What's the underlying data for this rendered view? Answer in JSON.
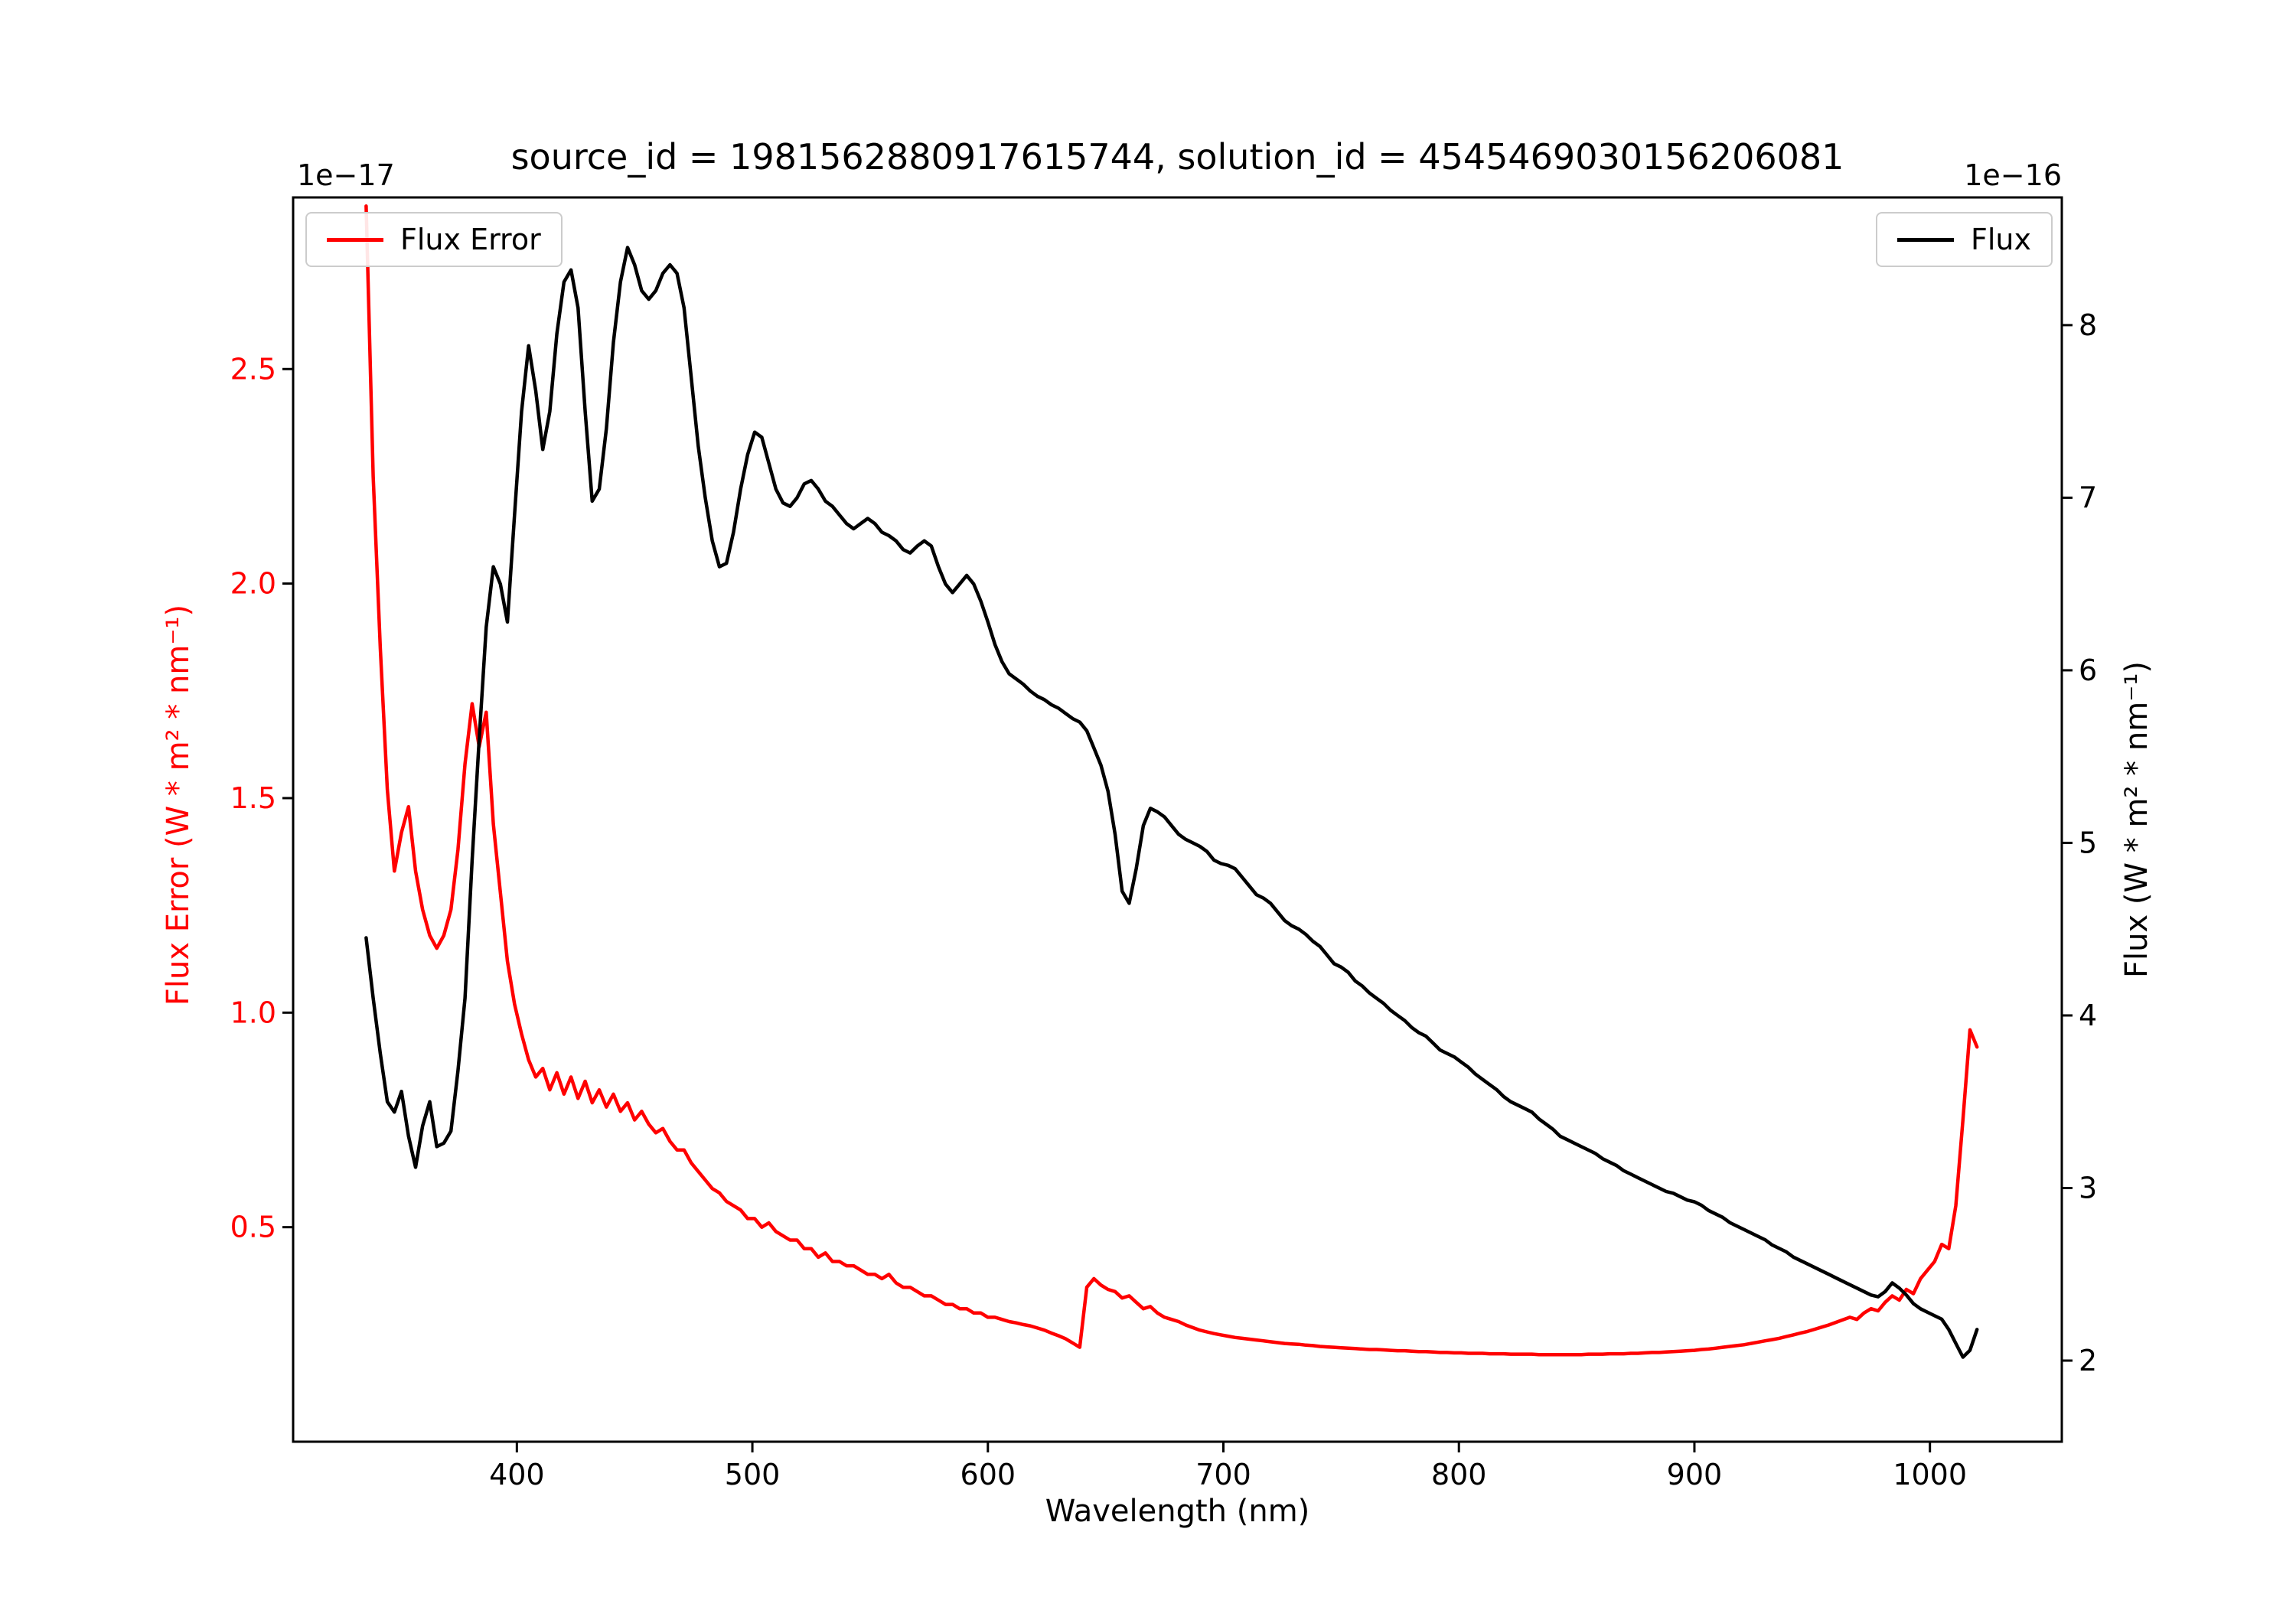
{
  "title": "source_id = 1981562880917615744, solution_id = 4545469030156206081",
  "chart_data": {
    "type": "line",
    "title": "source_id = 1981562880917615744, solution_id = 4545469030156206081",
    "xlabel": "Wavelength (nm)",
    "xlim": [
      305,
      1056
    ],
    "grid": false,
    "x_ticks": {
      "values": [
        400,
        500,
        600,
        700,
        800,
        900,
        1000
      ],
      "labels": [
        "400",
        "500",
        "600",
        "700",
        "800",
        "900",
        "1000"
      ]
    },
    "left_axis": {
      "label": "Flux Error (W * m² * nm⁻¹)",
      "offset_text": "1e−17",
      "color": "#ff0000",
      "ylim": [
        0.0,
        2.9
      ],
      "tick_values": [
        0.5,
        1.0,
        1.5,
        2.0,
        2.5
      ],
      "tick_labels": [
        "0.5",
        "1.0",
        "1.5",
        "2.0",
        "2.5"
      ]
    },
    "right_axis": {
      "label": "Flux (W * m² * nm⁻¹)",
      "offset_text": "1e−16",
      "color": "#000000",
      "ylim": [
        1.53,
        8.74
      ],
      "tick_values": [
        2,
        3,
        4,
        5,
        6,
        7,
        8
      ],
      "tick_labels": [
        "2",
        "3",
        "4",
        "5",
        "6",
        "7",
        "8"
      ]
    },
    "x_start": 336,
    "x_step": 3,
    "x_count": 229,
    "series": [
      {
        "name": "Flux Error",
        "color": "#ff0000",
        "axis": "left",
        "legend_position": "upper left",
        "values": [
          2.88,
          2.25,
          1.85,
          1.52,
          1.33,
          1.42,
          1.48,
          1.33,
          1.24,
          1.18,
          1.15,
          1.18,
          1.24,
          1.38,
          1.58,
          1.72,
          1.62,
          1.7,
          1.44,
          1.28,
          1.12,
          1.02,
          0.95,
          0.89,
          0.85,
          0.87,
          0.82,
          0.86,
          0.81,
          0.85,
          0.8,
          0.84,
          0.79,
          0.82,
          0.78,
          0.81,
          0.77,
          0.79,
          0.75,
          0.77,
          0.74,
          0.72,
          0.73,
          0.7,
          0.68,
          0.68,
          0.65,
          0.63,
          0.61,
          0.59,
          0.58,
          0.56,
          0.55,
          0.54,
          0.52,
          0.52,
          0.5,
          0.51,
          0.49,
          0.48,
          0.47,
          0.47,
          0.45,
          0.45,
          0.43,
          0.44,
          0.42,
          0.42,
          0.41,
          0.41,
          0.4,
          0.39,
          0.39,
          0.38,
          0.39,
          0.37,
          0.36,
          0.36,
          0.35,
          0.34,
          0.34,
          0.33,
          0.32,
          0.32,
          0.31,
          0.31,
          0.3,
          0.3,
          0.29,
          0.29,
          0.285,
          0.28,
          0.277,
          0.273,
          0.27,
          0.265,
          0.26,
          0.253,
          0.247,
          0.24,
          0.23,
          0.22,
          0.36,
          0.38,
          0.365,
          0.355,
          0.35,
          0.335,
          0.34,
          0.325,
          0.31,
          0.315,
          0.3,
          0.29,
          0.285,
          0.28,
          0.272,
          0.266,
          0.26,
          0.256,
          0.252,
          0.249,
          0.246,
          0.243,
          0.241,
          0.239,
          0.237,
          0.235,
          0.233,
          0.231,
          0.229,
          0.228,
          0.227,
          0.225,
          0.224,
          0.222,
          0.221,
          0.22,
          0.219,
          0.218,
          0.217,
          0.216,
          0.215,
          0.215,
          0.214,
          0.213,
          0.212,
          0.212,
          0.211,
          0.21,
          0.21,
          0.209,
          0.208,
          0.208,
          0.207,
          0.207,
          0.206,
          0.206,
          0.206,
          0.205,
          0.205,
          0.205,
          0.204,
          0.204,
          0.204,
          0.204,
          0.203,
          0.203,
          0.203,
          0.203,
          0.203,
          0.203,
          0.203,
          0.204,
          0.204,
          0.204,
          0.205,
          0.205,
          0.205,
          0.206,
          0.206,
          0.207,
          0.208,
          0.208,
          0.209,
          0.21,
          0.211,
          0.212,
          0.213,
          0.215,
          0.216,
          0.218,
          0.22,
          0.222,
          0.224,
          0.226,
          0.229,
          0.232,
          0.235,
          0.238,
          0.241,
          0.245,
          0.249,
          0.253,
          0.257,
          0.262,
          0.267,
          0.272,
          0.278,
          0.284,
          0.29,
          0.285,
          0.3,
          0.31,
          0.305,
          0.325,
          0.34,
          0.33,
          0.355,
          0.345,
          0.38,
          0.4,
          0.42,
          0.46,
          0.45,
          0.55,
          0.75,
          0.96,
          0.92
        ]
      },
      {
        "name": "Flux",
        "color": "#000000",
        "axis": "right",
        "legend_position": "upper right",
        "values": [
          4.45,
          4.1,
          3.78,
          3.5,
          3.44,
          3.56,
          3.3,
          3.12,
          3.36,
          3.5,
          3.24,
          3.26,
          3.33,
          3.68,
          4.1,
          4.9,
          5.6,
          6.25,
          6.6,
          6.5,
          6.28,
          6.9,
          7.5,
          7.88,
          7.62,
          7.28,
          7.5,
          7.95,
          8.25,
          8.32,
          8.1,
          7.5,
          6.98,
          7.05,
          7.4,
          7.9,
          8.25,
          8.45,
          8.35,
          8.2,
          8.15,
          8.2,
          8.3,
          8.35,
          8.3,
          8.1,
          7.7,
          7.3,
          7.0,
          6.75,
          6.6,
          6.62,
          6.8,
          7.05,
          7.25,
          7.38,
          7.35,
          7.2,
          7.05,
          6.97,
          6.95,
          7.0,
          7.08,
          7.1,
          7.05,
          6.98,
          6.95,
          6.9,
          6.85,
          6.82,
          6.85,
          6.88,
          6.85,
          6.8,
          6.78,
          6.75,
          6.7,
          6.68,
          6.72,
          6.75,
          6.72,
          6.6,
          6.5,
          6.45,
          6.5,
          6.55,
          6.5,
          6.4,
          6.28,
          6.15,
          6.05,
          5.98,
          5.95,
          5.92,
          5.88,
          5.85,
          5.83,
          5.8,
          5.78,
          5.75,
          5.72,
          5.7,
          5.65,
          5.55,
          5.45,
          5.3,
          5.05,
          4.72,
          4.65,
          4.85,
          5.1,
          5.2,
          5.18,
          5.15,
          5.1,
          5.05,
          5.02,
          5.0,
          4.98,
          4.95,
          4.9,
          4.88,
          4.87,
          4.85,
          4.8,
          4.75,
          4.7,
          4.68,
          4.65,
          4.6,
          4.55,
          4.52,
          4.5,
          4.47,
          4.43,
          4.4,
          4.35,
          4.3,
          4.28,
          4.25,
          4.2,
          4.17,
          4.13,
          4.1,
          4.07,
          4.03,
          4.0,
          3.97,
          3.93,
          3.9,
          3.88,
          3.84,
          3.8,
          3.78,
          3.76,
          3.73,
          3.7,
          3.66,
          3.63,
          3.6,
          3.57,
          3.53,
          3.5,
          3.48,
          3.46,
          3.44,
          3.4,
          3.37,
          3.34,
          3.3,
          3.28,
          3.26,
          3.24,
          3.22,
          3.2,
          3.17,
          3.15,
          3.13,
          3.1,
          3.08,
          3.06,
          3.04,
          3.02,
          3.0,
          2.98,
          2.97,
          2.95,
          2.93,
          2.92,
          2.9,
          2.87,
          2.85,
          2.83,
          2.8,
          2.78,
          2.76,
          2.74,
          2.72,
          2.7,
          2.67,
          2.65,
          2.63,
          2.6,
          2.58,
          2.56,
          2.54,
          2.52,
          2.5,
          2.48,
          2.46,
          2.44,
          2.42,
          2.4,
          2.38,
          2.37,
          2.4,
          2.45,
          2.42,
          2.38,
          2.33,
          2.3,
          2.28,
          2.26,
          2.24,
          2.18,
          2.1,
          2.02,
          2.06,
          2.18
        ]
      }
    ]
  },
  "legends": {
    "flux_error_label": "Flux Error",
    "flux_label": "Flux"
  }
}
